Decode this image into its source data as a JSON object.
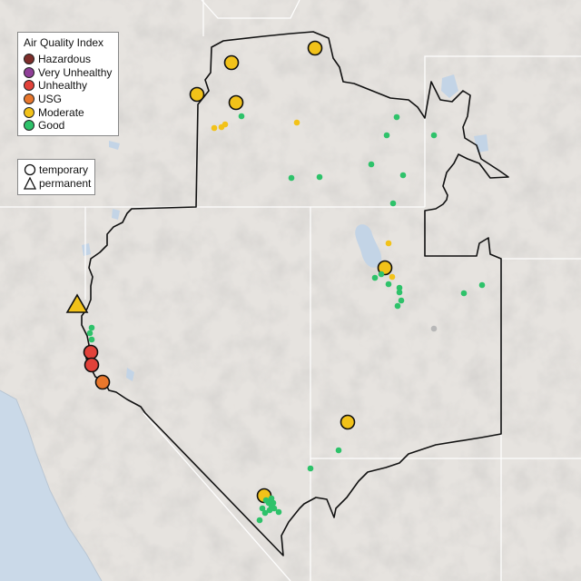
{
  "legend": {
    "title": "Air Quality Index",
    "categories": [
      {
        "label": "Hazardous",
        "color": "#7e2e2a"
      },
      {
        "label": "Very Unhealthy",
        "color": "#8f3f97"
      },
      {
        "label": "Unhealthy",
        "color": "#e2423a"
      },
      {
        "label": "USG",
        "color": "#e8772c"
      },
      {
        "label": "Moderate",
        "color": "#f2c219"
      },
      {
        "label": "Good",
        "color": "#2ec26a"
      }
    ],
    "monitor_types": [
      {
        "label": "temporary",
        "symbol": "circle"
      },
      {
        "label": "permanent",
        "symbol": "triangle"
      }
    ]
  },
  "colors": {
    "background": "#e6e3df",
    "state_lines": "#ffffff",
    "outline": "#111111",
    "lake": "#c3d4e6",
    "ocean": "#cad9e8",
    "no_data": "#b8b8b8"
  },
  "markers": [
    {
      "type": "temporary",
      "category": "Moderate",
      "size": "large"
    },
    {
      "type": "temporary",
      "category": "Moderate",
      "size": "large"
    },
    {
      "type": "temporary",
      "category": "Moderate",
      "size": "large"
    },
    {
      "type": "temporary",
      "category": "Moderate",
      "size": "large"
    },
    {
      "type": "temporary",
      "category": "Moderate",
      "size": "large"
    },
    {
      "type": "temporary",
      "category": "Moderate",
      "size": "large"
    },
    {
      "type": "permanent",
      "category": "Moderate",
      "size": "large"
    },
    {
      "type": "temporary",
      "category": "Unhealthy",
      "size": "large"
    },
    {
      "type": "temporary",
      "category": "Unhealthy",
      "size": "large"
    },
    {
      "type": "temporary",
      "category": "USG",
      "size": "large"
    },
    {
      "type": "temporary",
      "category": "Moderate",
      "size": "large"
    },
    {
      "type": "other",
      "category": "Moderate",
      "size": "small"
    },
    {
      "type": "other",
      "category": "Moderate",
      "size": "small"
    },
    {
      "type": "other",
      "category": "Moderate",
      "size": "small"
    },
    {
      "type": "other",
      "category": "Moderate",
      "size": "small"
    },
    {
      "type": "other",
      "category": "Moderate",
      "size": "small"
    },
    {
      "type": "other",
      "category": "Moderate",
      "size": "small"
    },
    {
      "type": "other",
      "category": "Good",
      "size": "small"
    },
    {
      "type": "other",
      "category": "Good",
      "size": "small"
    },
    {
      "type": "other",
      "category": "Good",
      "size": "small"
    },
    {
      "type": "other",
      "category": "Good",
      "size": "small"
    },
    {
      "type": "other",
      "category": "Good",
      "size": "small"
    },
    {
      "type": "other",
      "category": "Good",
      "size": "small"
    },
    {
      "type": "other",
      "category": "Good",
      "size": "small"
    },
    {
      "type": "other",
      "category": "Good",
      "size": "small"
    },
    {
      "type": "other",
      "category": "Good",
      "size": "small"
    },
    {
      "type": "other",
      "category": "Good",
      "size": "small"
    },
    {
      "type": "other",
      "category": "Good",
      "size": "small"
    },
    {
      "type": "other",
      "category": "Good",
      "size": "small"
    },
    {
      "type": "other",
      "category": "Good",
      "size": "small"
    },
    {
      "type": "other",
      "category": "Good",
      "size": "small"
    },
    {
      "type": "other",
      "category": "Good",
      "size": "small"
    },
    {
      "type": "other",
      "category": "Good",
      "size": "small"
    },
    {
      "type": "other",
      "category": "Good",
      "size": "small"
    },
    {
      "type": "other",
      "category": "Good",
      "size": "small"
    },
    {
      "type": "other",
      "category": "Good",
      "size": "small"
    },
    {
      "type": "other",
      "category": "Good",
      "size": "small"
    },
    {
      "type": "other",
      "category": "Good",
      "size": "small"
    },
    {
      "type": "other",
      "category": "Good",
      "size": "small"
    },
    {
      "type": "other",
      "category": "Good",
      "size": "small"
    },
    {
      "type": "other",
      "category": "Good",
      "size": "small"
    },
    {
      "type": "other",
      "category": "Good",
      "size": "small"
    },
    {
      "type": "other",
      "category": "Good",
      "size": "small"
    },
    {
      "type": "other",
      "category": "Good",
      "size": "small"
    },
    {
      "type": "other",
      "category": "Good",
      "size": "small"
    },
    {
      "type": "other",
      "category": "Good",
      "size": "small"
    },
    {
      "type": "other",
      "category": "Good",
      "size": "small"
    },
    {
      "type": "other",
      "category": "Good",
      "size": "small"
    },
    {
      "type": "other",
      "category": "Good",
      "size": "small"
    },
    {
      "type": "other",
      "category": "Good",
      "size": "small"
    },
    {
      "type": "other",
      "category": "Good",
      "size": "small"
    },
    {
      "type": "other",
      "category": "No data",
      "size": "small"
    },
    {
      "type": "other",
      "category": "No data",
      "size": "small"
    }
  ]
}
